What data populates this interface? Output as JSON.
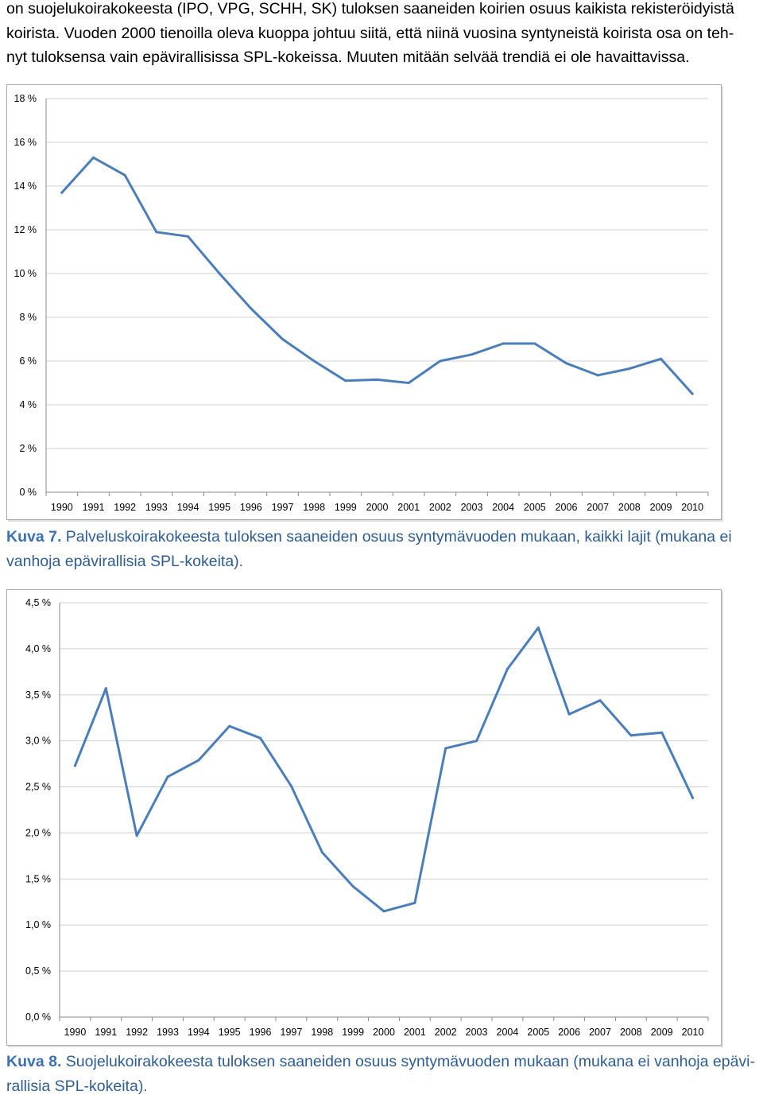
{
  "intro_paragraph": {
    "lines": [
      "on suojelukoirakokeesta (IPO, VPG, SCHH, SK) tuloksen saaneiden koirien osuus kaikista rekisteröidyistä",
      "koirista. Vuoden 2000 tienoilla oleva kuoppa johtuu siitä, että niinä vuosina syntyneistä koirista osa on teh-",
      "nyt tuloksensa vain epävirallisissa SPL-kokeissa. Muuten mitään selvää trendiä ei ole havaittavissa."
    ]
  },
  "captions": {
    "kuva7": {
      "label": "Kuva 7.",
      "text_line1": " Palveluskoirakokeesta tuloksen saaneiden osuus syntymävuoden mukaan, kaikki lajit (mukana ei",
      "text_line2": "vanhoja epävirallisia SPL-kokeita)."
    },
    "kuva8": {
      "label": "Kuva 8.",
      "text_line1": " Suojelukoirakokeesta tuloksen saaneiden osuus syntymävuoden mukaan (mukana ei vanhoja epävi-",
      "text_line2": "rallisia SPL-kokeita)."
    }
  },
  "colors": {
    "line": "#4a7ebb",
    "grid": "#d0d0d0",
    "axis": "#888888"
  },
  "chart_data": [
    {
      "type": "line",
      "title": "",
      "xlabel": "",
      "ylabel": "",
      "categories": [
        "1990",
        "1991",
        "1992",
        "1993",
        "1994",
        "1995",
        "1996",
        "1997",
        "1998",
        "1999",
        "2000",
        "2001",
        "2002",
        "2003",
        "2004",
        "2005",
        "2006",
        "2007",
        "2008",
        "2009",
        "2010"
      ],
      "values": [
        13.7,
        15.3,
        14.5,
        11.9,
        11.7,
        10.0,
        8.4,
        7.0,
        6.0,
        5.1,
        5.15,
        5.0,
        6.0,
        6.3,
        6.8,
        6.8,
        5.9,
        5.35,
        5.65,
        6.1,
        4.5
      ],
      "ylim": [
        0,
        18
      ],
      "ytick_values": [
        0,
        2,
        4,
        6,
        8,
        10,
        12,
        14,
        16,
        18
      ],
      "ytick_labels": [
        "0 %",
        "2 %",
        "4 %",
        "6 %",
        "8 %",
        "10 %",
        "12 %",
        "14 %",
        "16 %",
        "18 %"
      ],
      "grid": true,
      "legend": "none"
    },
    {
      "type": "line",
      "title": "",
      "xlabel": "",
      "ylabel": "",
      "categories": [
        "1990",
        "1991",
        "1992",
        "1993",
        "1994",
        "1995",
        "1996",
        "1997",
        "1998",
        "1999",
        "2000",
        "2001",
        "2002",
        "2003",
        "2004",
        "2005",
        "2006",
        "2007",
        "2008",
        "2009",
        "2010"
      ],
      "values": [
        2.73,
        3.57,
        1.97,
        2.61,
        2.79,
        3.16,
        3.03,
        2.51,
        1.79,
        1.42,
        1.15,
        1.24,
        2.92,
        3.0,
        3.78,
        4.23,
        3.29,
        3.44,
        3.06,
        3.09,
        2.38
      ],
      "ylim": [
        0,
        4.5
      ],
      "ytick_values": [
        0,
        0.5,
        1.0,
        1.5,
        2.0,
        2.5,
        3.0,
        3.5,
        4.0,
        4.5
      ],
      "ytick_labels": [
        "0,0 %",
        "0,5 %",
        "1,0 %",
        "1,5 %",
        "2,0 %",
        "2,5 %",
        "3,0 %",
        "3,5 %",
        "4,0 %",
        "4,5 %"
      ],
      "grid": true,
      "legend": "none"
    }
  ]
}
